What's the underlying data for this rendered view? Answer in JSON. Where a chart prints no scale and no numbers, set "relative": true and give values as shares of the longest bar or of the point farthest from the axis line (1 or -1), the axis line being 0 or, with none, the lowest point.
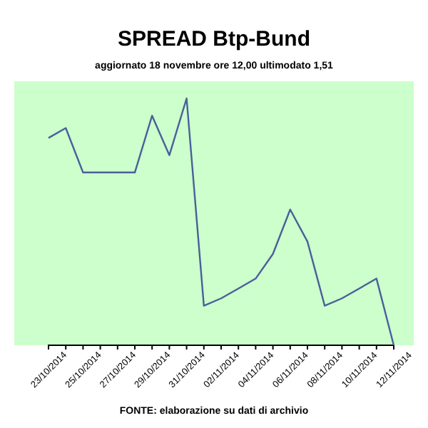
{
  "chart_data": {
    "type": "line",
    "title": "SPREAD Btp-Bund",
    "subtitle": "aggiornato 18 novembre ore 12,00  ultimodato  1,51",
    "categories": [
      "23/10/2014",
      null,
      "25/10/2014",
      null,
      "27/10/2014",
      null,
      "29/10/2014",
      null,
      "31/10/2014",
      null,
      "02/11/2014",
      null,
      "04/11/2014",
      null,
      "06/11/2014",
      null,
      "08/11/2014",
      null,
      "10/11/2014",
      null,
      "12/11/2014"
    ],
    "relative": true,
    "series": [
      {
        "color": "#4a5f9a",
        "values": [
          0.84,
          0.88,
          0.7,
          0.7,
          0.7,
          0.7,
          0.93,
          0.77,
          1,
          0.16,
          0.19,
          0.23,
          0.27,
          0.37,
          0.55,
          0.42,
          0.16,
          0.19,
          0.23,
          0.27,
          0
        ]
      }
    ],
    "marker": "none",
    "annotations": [
      "FONTE: elaborazione su dati di archivio"
    ]
  }
}
